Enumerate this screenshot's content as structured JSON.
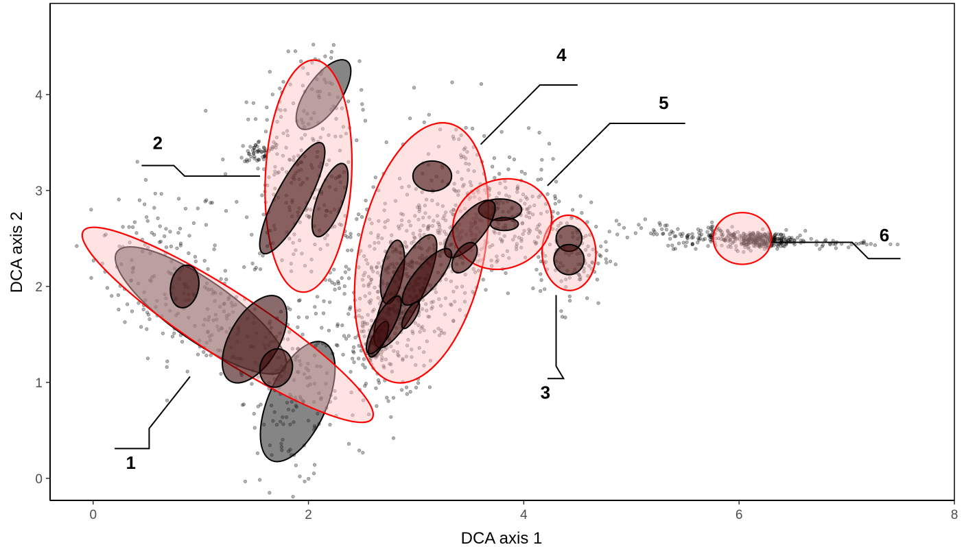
{
  "chart_data": {
    "type": "scatter",
    "xlabel": "DCA axis 1",
    "ylabel": "DCA axis 2",
    "xlim": [
      -0.4,
      8.0
    ],
    "ylim": [
      -0.23,
      4.95
    ],
    "x_ticks": [
      0,
      2,
      4,
      6,
      8
    ],
    "y_ticks": [
      0,
      1,
      2,
      3,
      4
    ],
    "x_tick_labels": [
      "0",
      "2",
      "4",
      "6",
      "8"
    ],
    "y_tick_labels": [
      "0",
      "1",
      "2",
      "3",
      "4"
    ],
    "grid": false,
    "point_color": "#000000",
    "point_alpha": 0.3,
    "point_clusters": [
      {
        "cx": 0.6,
        "cy": 2.3,
        "sx": 0.3,
        "sy": 0.4,
        "r": 0.0,
        "n": 90
      },
      {
        "cx": 1.15,
        "cy": 1.65,
        "sx": 0.45,
        "sy": 0.4,
        "r": -0.6,
        "n": 180
      },
      {
        "cx": 1.85,
        "cy": 0.8,
        "sx": 0.22,
        "sy": 0.45,
        "r": 0.0,
        "n": 110
      },
      {
        "cx": 1.9,
        "cy": 3.05,
        "sx": 0.3,
        "sy": 0.5,
        "r": -0.2,
        "n": 210
      },
      {
        "cx": 2.15,
        "cy": 4.05,
        "sx": 0.2,
        "sy": 0.35,
        "r": 0.0,
        "n": 40
      },
      {
        "cx": 1.55,
        "cy": 3.4,
        "sx": 0.1,
        "sy": 0.06,
        "r": 0.0,
        "n": 45
      },
      {
        "cx": 2.5,
        "cy": 2.1,
        "sx": 0.35,
        "sy": 0.6,
        "r": 0.0,
        "n": 110
      },
      {
        "cx": 2.95,
        "cy": 2.0,
        "sx": 0.35,
        "sy": 0.55,
        "r": 0.55,
        "n": 460
      },
      {
        "cx": 2.62,
        "cy": 1.32,
        "sx": 0.08,
        "sy": 0.12,
        "r": 0.0,
        "n": 70
      },
      {
        "cx": 3.5,
        "cy": 2.95,
        "sx": 0.35,
        "sy": 0.45,
        "r": 0.0,
        "n": 150
      },
      {
        "cx": 3.8,
        "cy": 2.65,
        "sx": 0.25,
        "sy": 0.22,
        "r": 0.0,
        "n": 130
      },
      {
        "cx": 4.45,
        "cy": 2.35,
        "sx": 0.18,
        "sy": 0.28,
        "r": 0.0,
        "n": 110
      },
      {
        "cx": 5.1,
        "cy": 2.6,
        "sx": 0.3,
        "sy": 0.08,
        "r": 0.0,
        "n": 25
      },
      {
        "cx": 5.9,
        "cy": 2.52,
        "sx": 0.3,
        "sy": 0.06,
        "r": 0.0,
        "n": 150
      },
      {
        "cx": 6.2,
        "cy": 2.48,
        "sx": 0.15,
        "sy": 0.04,
        "r": 0.0,
        "n": 220
      },
      {
        "cx": 6.85,
        "cy": 2.45,
        "sx": 0.3,
        "sy": 0.02,
        "r": 0.0,
        "n": 35
      }
    ],
    "group_ellipses": [
      {
        "id": "1",
        "cx": 1.25,
        "cy": 1.6,
        "rx": 1.6,
        "ry": 0.3,
        "angle": -33,
        "fill": "#ffc0c0",
        "fill_opacity": 0.45,
        "stroke": "#ff0000"
      },
      {
        "id": "2",
        "cx": 2.0,
        "cy": 3.15,
        "rx": 1.08,
        "ry": 0.4,
        "angle": 87,
        "fill": "#ffc0c0",
        "fill_opacity": 0.45,
        "stroke": "#ff0000"
      },
      {
        "id": "3",
        "cx": 4.42,
        "cy": 2.35,
        "rx": 0.35,
        "ry": 0.25,
        "angle": 92,
        "fill": "#ffc0c0",
        "fill_opacity": 0.45,
        "stroke": "#ff0000"
      },
      {
        "id": "4",
        "cx": 3.05,
        "cy": 2.35,
        "rx": 1.23,
        "ry": 0.58,
        "angle": 78,
        "fill": "#ffc0c0",
        "fill_opacity": 0.45,
        "stroke": "#ff0000"
      },
      {
        "id": "5",
        "cx": 3.8,
        "cy": 2.65,
        "rx": 0.47,
        "ry": 0.41,
        "angle": 25,
        "fill": "#ffc0c0",
        "fill_opacity": 0.45,
        "stroke": "#ff0000"
      },
      {
        "id": "6",
        "cx": 6.03,
        "cy": 2.5,
        "rx": 0.27,
        "ry": 0.24,
        "angle": 0,
        "fill": "#ffc0c0",
        "fill_opacity": 0.45,
        "stroke": "#ff0000"
      }
    ],
    "subgroup_ellipses": [
      {
        "cx": 1.0,
        "cy": 1.75,
        "rx": 0.95,
        "ry": 0.28,
        "angle": -35,
        "fill": "#202020",
        "fill_opacity": 0.55
      },
      {
        "cx": 1.9,
        "cy": 0.8,
        "rx": 0.6,
        "ry": 0.27,
        "angle": 66,
        "fill": "#202020",
        "fill_opacity": 0.55
      },
      {
        "cx": 2.14,
        "cy": 4.0,
        "rx": 0.38,
        "ry": 0.16,
        "angle": 55,
        "fill": "#202020",
        "fill_opacity": 0.55
      },
      {
        "cx": 0.85,
        "cy": 2.0,
        "rx": 0.2,
        "ry": 0.13,
        "angle": 80,
        "fill": "#3a0808",
        "fill_opacity": 0.6
      },
      {
        "cx": 1.5,
        "cy": 1.45,
        "rx": 0.45,
        "ry": 0.23,
        "angle": 60,
        "fill": "#3a0808",
        "fill_opacity": 0.6
      },
      {
        "cx": 1.7,
        "cy": 1.15,
        "rx": 0.18,
        "ry": 0.15,
        "angle": 75,
        "fill": "#3a0808",
        "fill_opacity": 0.6
      },
      {
        "cx": 1.85,
        "cy": 2.92,
        "rx": 0.58,
        "ry": 0.15,
        "angle": 62,
        "fill": "#3a0808",
        "fill_opacity": 0.6
      },
      {
        "cx": 2.2,
        "cy": 2.9,
        "rx": 0.36,
        "ry": 0.12,
        "angle": 70,
        "fill": "#3a0808",
        "fill_opacity": 0.6
      },
      {
        "cx": 3.15,
        "cy": 3.15,
        "rx": 0.14,
        "ry": 0.18,
        "angle": 90,
        "fill": "#3a0808",
        "fill_opacity": 0.6
      },
      {
        "cx": 3.78,
        "cy": 2.8,
        "rx": 0.1,
        "ry": 0.2,
        "angle": 90,
        "fill": "#3a0808",
        "fill_opacity": 0.6
      },
      {
        "cx": 3.82,
        "cy": 2.65,
        "rx": 0.06,
        "ry": 0.13,
        "angle": 90,
        "fill": "#3a0808",
        "fill_opacity": 0.6
      },
      {
        "cx": 3.5,
        "cy": 2.6,
        "rx": 0.33,
        "ry": 0.13,
        "angle": 50,
        "fill": "#3a0808",
        "fill_opacity": 0.6
      },
      {
        "cx": 2.78,
        "cy": 2.15,
        "rx": 0.3,
        "ry": 0.1,
        "angle": 80,
        "fill": "#3a0808",
        "fill_opacity": 0.6
      },
      {
        "cx": 2.9,
        "cy": 1.95,
        "rx": 0.58,
        "ry": 0.16,
        "angle": 64,
        "fill": "#3a0808",
        "fill_opacity": 0.6
      },
      {
        "cx": 2.65,
        "cy": 1.45,
        "rx": 0.18,
        "ry": 0.06,
        "angle": 65,
        "fill": "#3a0808",
        "fill_opacity": 0.6
      },
      {
        "cx": 2.7,
        "cy": 1.6,
        "rx": 0.3,
        "ry": 0.09,
        "angle": 62,
        "fill": "#3a0808",
        "fill_opacity": 0.6
      },
      {
        "cx": 3.1,
        "cy": 2.1,
        "rx": 0.33,
        "ry": 0.11,
        "angle": 50,
        "fill": "#3a0808",
        "fill_opacity": 0.6
      },
      {
        "cx": 3.45,
        "cy": 2.3,
        "rx": 0.16,
        "ry": 0.09,
        "angle": 55,
        "fill": "#3a0808",
        "fill_opacity": 0.6
      },
      {
        "cx": 2.95,
        "cy": 1.7,
        "rx": 0.14,
        "ry": 0.05,
        "angle": 60,
        "fill": "#3a0808",
        "fill_opacity": 0.6
      },
      {
        "cx": 4.42,
        "cy": 2.5,
        "rx": 0.12,
        "ry": 0.12,
        "angle": 0,
        "fill": "#3a0808",
        "fill_opacity": 0.6
      },
      {
        "cx": 4.42,
        "cy": 2.28,
        "rx": 0.14,
        "ry": 0.14,
        "angle": 0,
        "fill": "#3a0808",
        "fill_opacity": 0.6
      }
    ],
    "annotations": [
      {
        "label": "1",
        "label_at": [
          0.35,
          0.1
        ],
        "path": [
          [
            0.2,
            0.31
          ],
          [
            0.52,
            0.31
          ],
          [
            0.52,
            0.52
          ],
          [
            0.9,
            1.06
          ]
        ]
      },
      {
        "label": "2",
        "label_at": [
          0.6,
          3.43
        ],
        "path": [
          [
            0.45,
            3.26
          ],
          [
            0.75,
            3.26
          ],
          [
            0.85,
            3.15
          ],
          [
            1.55,
            3.15
          ]
        ]
      },
      {
        "label": "3",
        "label_at": [
          4.2,
          0.83
        ],
        "path": [
          [
            4.3,
            1.91
          ],
          [
            4.3,
            1.17
          ],
          [
            4.37,
            1.04
          ],
          [
            4.22,
            1.04
          ]
        ]
      },
      {
        "label": "4",
        "label_at": [
          4.35,
          4.35
        ],
        "path": [
          [
            3.6,
            3.48
          ],
          [
            4.15,
            4.1
          ],
          [
            4.5,
            4.1
          ]
        ]
      },
      {
        "label": "5",
        "label_at": [
          5.3,
          3.85
        ],
        "path": [
          [
            4.22,
            3.05
          ],
          [
            4.8,
            3.7
          ],
          [
            5.5,
            3.7
          ]
        ]
      },
      {
        "label": "6",
        "label_at": [
          7.35,
          2.47
        ],
        "path": [
          [
            6.3,
            2.46
          ],
          [
            7.05,
            2.46
          ],
          [
            7.2,
            2.29
          ],
          [
            7.5,
            2.29
          ]
        ]
      }
    ]
  }
}
